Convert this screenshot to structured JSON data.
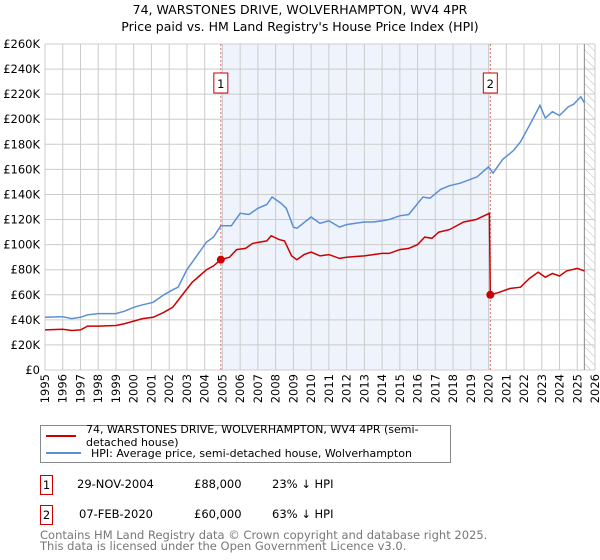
{
  "title": "74, WARSTONES DRIVE, WOLVERHAMPTON, WV4 4PR",
  "subtitle": "Price paid vs. HM Land Registry's House Price Index (HPI)",
  "legend": {
    "property": "74, WARSTONES DRIVE, WOLVERHAMPTON, WV4 4PR (semi-detached house)",
    "hpi": "HPI: Average price, semi-detached house, Wolverhampton"
  },
  "sales": [
    {
      "num": "1",
      "date": "29-NOV-2004",
      "price": "£88,000",
      "hpi_diff": "23% ↓ HPI"
    },
    {
      "num": "2",
      "date": "07-FEB-2020",
      "price": "£60,000",
      "hpi_diff": "63% ↓ HPI"
    }
  ],
  "footer": {
    "line1": "Contains HM Land Registry data © Crown copyright and database right 2025.",
    "line2": "This data is licensed under the Open Government Licence v3.0."
  },
  "colors": {
    "property": "#cc0000",
    "hpi": "#5b8fd4",
    "shade": "#eef3fc",
    "grid": "#cccccc"
  },
  "chart_data": {
    "type": "line",
    "title": "74, WARSTONES DRIVE, WOLVERHAMPTON, WV4 4PR",
    "subtitle": "Price paid vs. HM Land Registry's House Price Index (HPI)",
    "xlim": [
      1995,
      2026
    ],
    "ylim": [
      0,
      260000
    ],
    "x_ticks": [
      "1995",
      "1996",
      "1997",
      "1998",
      "1999",
      "2000",
      "2001",
      "2002",
      "2003",
      "2004",
      "2005",
      "2006",
      "2007",
      "2008",
      "2009",
      "2010",
      "2011",
      "2012",
      "2013",
      "2014",
      "2015",
      "2016",
      "2017",
      "2018",
      "2019",
      "2020",
      "2021",
      "2022",
      "2023",
      "2024",
      "2025",
      "2026"
    ],
    "y_ticks": [
      {
        "v": 0,
        "label": "£0"
      },
      {
        "v": 20000,
        "label": "£20K"
      },
      {
        "v": 40000,
        "label": "£40K"
      },
      {
        "v": 60000,
        "label": "£60K"
      },
      {
        "v": 80000,
        "label": "£80K"
      },
      {
        "v": 100000,
        "label": "£100K"
      },
      {
        "v": 120000,
        "label": "£120K"
      },
      {
        "v": 140000,
        "label": "£140K"
      },
      {
        "v": 160000,
        "label": "£160K"
      },
      {
        "v": 180000,
        "label": "£180K"
      },
      {
        "v": 200000,
        "label": "£200K"
      },
      {
        "v": 220000,
        "label": "£220K"
      },
      {
        "v": 240000,
        "label": "£240K"
      },
      {
        "v": 260000,
        "label": "£260K"
      }
    ],
    "grid": true,
    "shaded_range": [
      2004.91,
      2020.1
    ],
    "hatched_from": 2025.4,
    "markers": [
      {
        "label": "1",
        "x": 2004.91,
        "y": 88000
      },
      {
        "label": "2",
        "x": 2020.1,
        "y": 60000
      }
    ],
    "series": [
      {
        "name": "74, WARSTONES DRIVE, WOLVERHAMPTON, WV4 4PR (semi-detached house)",
        "color": "#cc0000",
        "points": [
          [
            1995,
            32000
          ],
          [
            1996,
            32500
          ],
          [
            1996.5,
            31500
          ],
          [
            1997,
            32000
          ],
          [
            1997.4,
            35000
          ],
          [
            1998,
            35000
          ],
          [
            1999,
            35500
          ],
          [
            1999.5,
            37000
          ],
          [
            2000,
            39000
          ],
          [
            2000.5,
            41000
          ],
          [
            2001.1,
            42000
          ],
          [
            2001.7,
            46000
          ],
          [
            2002.2,
            50000
          ],
          [
            2002.8,
            61000
          ],
          [
            2003.3,
            70000
          ],
          [
            2003.7,
            75000
          ],
          [
            2004.1,
            80000
          ],
          [
            2004.5,
            83000
          ],
          [
            2004.91,
            88000
          ],
          [
            2005.4,
            90000
          ],
          [
            2005.8,
            96000
          ],
          [
            2006.3,
            97000
          ],
          [
            2006.7,
            101000
          ],
          [
            2007.1,
            102000
          ],
          [
            2007.5,
            103000
          ],
          [
            2007.75,
            107000
          ],
          [
            2008.2,
            104000
          ],
          [
            2008.5,
            103000
          ],
          [
            2008.9,
            91000
          ],
          [
            2009.2,
            88000
          ],
          [
            2009.6,
            92000
          ],
          [
            2010,
            94000
          ],
          [
            2010.5,
            91000
          ],
          [
            2011,
            92000
          ],
          [
            2011.6,
            89000
          ],
          [
            2012,
            90000
          ],
          [
            2012.5,
            90500
          ],
          [
            2013,
            91000
          ],
          [
            2013.5,
            92000
          ],
          [
            2014,
            93000
          ],
          [
            2014.4,
            93000
          ],
          [
            2015,
            96000
          ],
          [
            2015.5,
            97000
          ],
          [
            2016,
            100000
          ],
          [
            2016.4,
            106000
          ],
          [
            2016.8,
            105000
          ],
          [
            2017.2,
            110000
          ],
          [
            2017.8,
            112000
          ],
          [
            2018.6,
            118000
          ],
          [
            2019.3,
            120000
          ],
          [
            2020.05,
            125000
          ],
          [
            2020.1,
            60000
          ],
          [
            2020.6,
            62000
          ],
          [
            2021.2,
            65000
          ],
          [
            2021.8,
            66000
          ],
          [
            2022.3,
            73000
          ],
          [
            2022.8,
            78000
          ],
          [
            2023.2,
            74000
          ],
          [
            2023.6,
            77000
          ],
          [
            2024,
            75000
          ],
          [
            2024.4,
            79000
          ],
          [
            2025,
            81000
          ],
          [
            2025.4,
            79000
          ]
        ]
      },
      {
        "name": "HPI: Average price, semi-detached house, Wolverhampton",
        "color": "#5b8fd4",
        "points": [
          [
            1995,
            42000
          ],
          [
            1996,
            42500
          ],
          [
            1996.5,
            41000
          ],
          [
            1997,
            42000
          ],
          [
            1997.4,
            44000
          ],
          [
            1998,
            45000
          ],
          [
            1999,
            45000
          ],
          [
            1999.5,
            47000
          ],
          [
            2000,
            50000
          ],
          [
            2000.5,
            52000
          ],
          [
            2001.1,
            54000
          ],
          [
            2001.7,
            60000
          ],
          [
            2002.2,
            64000
          ],
          [
            2002.5,
            66000
          ],
          [
            2003,
            80000
          ],
          [
            2003.5,
            90000
          ],
          [
            2004.1,
            102000
          ],
          [
            2004.5,
            106000
          ],
          [
            2004.91,
            115000
          ],
          [
            2005.5,
            115000
          ],
          [
            2006,
            125000
          ],
          [
            2006.5,
            124000
          ],
          [
            2007,
            129000
          ],
          [
            2007.5,
            132000
          ],
          [
            2007.8,
            138000
          ],
          [
            2008.3,
            133000
          ],
          [
            2008.6,
            129000
          ],
          [
            2009,
            114000
          ],
          [
            2009.2,
            113000
          ],
          [
            2010,
            122000
          ],
          [
            2010.5,
            117000
          ],
          [
            2011,
            119000
          ],
          [
            2011.6,
            114000
          ],
          [
            2012,
            116000
          ],
          [
            2012.5,
            117000
          ],
          [
            2013,
            118000
          ],
          [
            2013.5,
            118000
          ],
          [
            2014,
            119000
          ],
          [
            2014.4,
            120000
          ],
          [
            2015,
            123000
          ],
          [
            2015.5,
            124000
          ],
          [
            2016.3,
            138000
          ],
          [
            2016.7,
            137000
          ],
          [
            2017.3,
            144000
          ],
          [
            2017.8,
            147000
          ],
          [
            2018.4,
            149000
          ],
          [
            2019.35,
            154000
          ],
          [
            2020.0,
            162000
          ],
          [
            2020.25,
            157000
          ],
          [
            2020.8,
            168000
          ],
          [
            2021.4,
            175000
          ],
          [
            2021.8,
            182000
          ],
          [
            2022.3,
            195000
          ],
          [
            2022.9,
            211000
          ],
          [
            2023.2,
            201000
          ],
          [
            2023.6,
            206000
          ],
          [
            2024,
            203000
          ],
          [
            2024.5,
            210000
          ],
          [
            2024.8,
            212000
          ],
          [
            2025.2,
            218000
          ],
          [
            2025.4,
            213000
          ]
        ]
      }
    ]
  }
}
